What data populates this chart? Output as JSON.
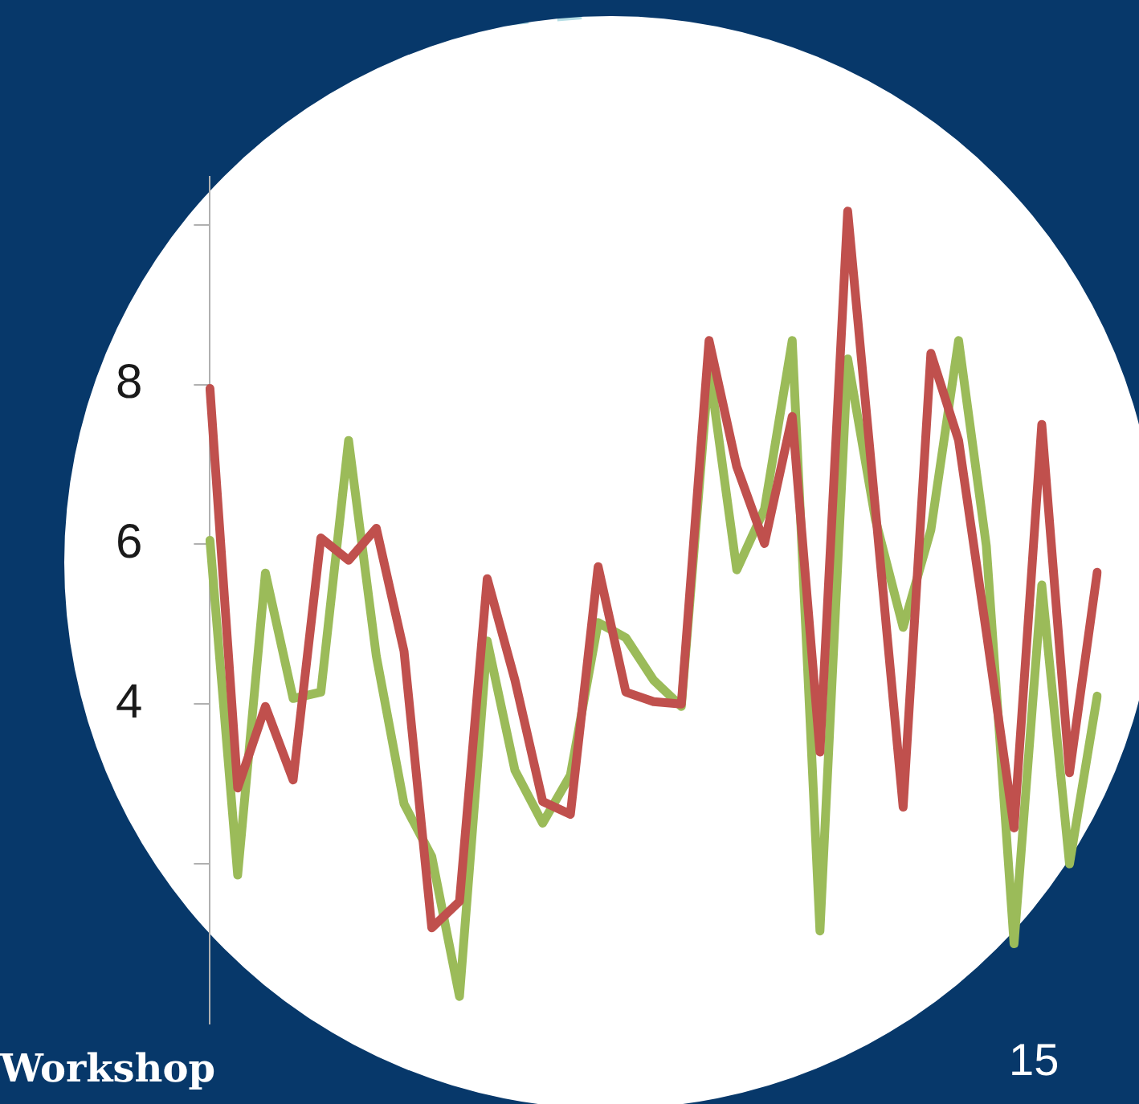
{
  "chart_data": {
    "type": "line",
    "categories": [
      null,
      null,
      null,
      null,
      null,
      null,
      null,
      null,
      null,
      null,
      null,
      null,
      null,
      null,
      null,
      null,
      null,
      null,
      null,
      null,
      null,
      null,
      null,
      null,
      null,
      null,
      null,
      null,
      null,
      null,
      null,
      null,
      null
    ],
    "series": [
      {
        "color": "#c0504d",
        "values": [
          7.95,
          2.95,
          3.97,
          3.05,
          6.08,
          5.8,
          6.2,
          4.66,
          1.2,
          1.53,
          5.57,
          4.3,
          2.78,
          2.62,
          5.72,
          4.15,
          4.03,
          4.0,
          8.55,
          6.97,
          6.01,
          7.6,
          3.4,
          10.17,
          6.44,
          2.71,
          8.39,
          7.3,
          4.9,
          2.45,
          7.5,
          3.14,
          5.65
        ]
      },
      {
        "color": "#9bbb59",
        "values": [
          6.05,
          1.86,
          5.64,
          4.07,
          4.15,
          7.3,
          4.6,
          2.75,
          2.09,
          0.34,
          4.79,
          3.17,
          2.51,
          3.11,
          5.02,
          4.83,
          4.3,
          3.97,
          8.22,
          5.68,
          6.44,
          8.55,
          1.16,
          8.32,
          6.31,
          4.96,
          6.18,
          8.55,
          5.98,
          1.0,
          5.49,
          2.0,
          4.1
        ]
      }
    ],
    "ylim": [
      0,
      10.6
    ],
    "yticks": [
      {
        "value": 2,
        "label": null
      },
      4,
      6,
      8,
      {
        "value": 10,
        "label": null
      }
    ],
    "grid": false,
    "legend": false,
    "marker": "none",
    "line_style": "solid",
    "tick_labels": "y",
    "annotations": [
      "Workshop",
      "15"
    ]
  }
}
